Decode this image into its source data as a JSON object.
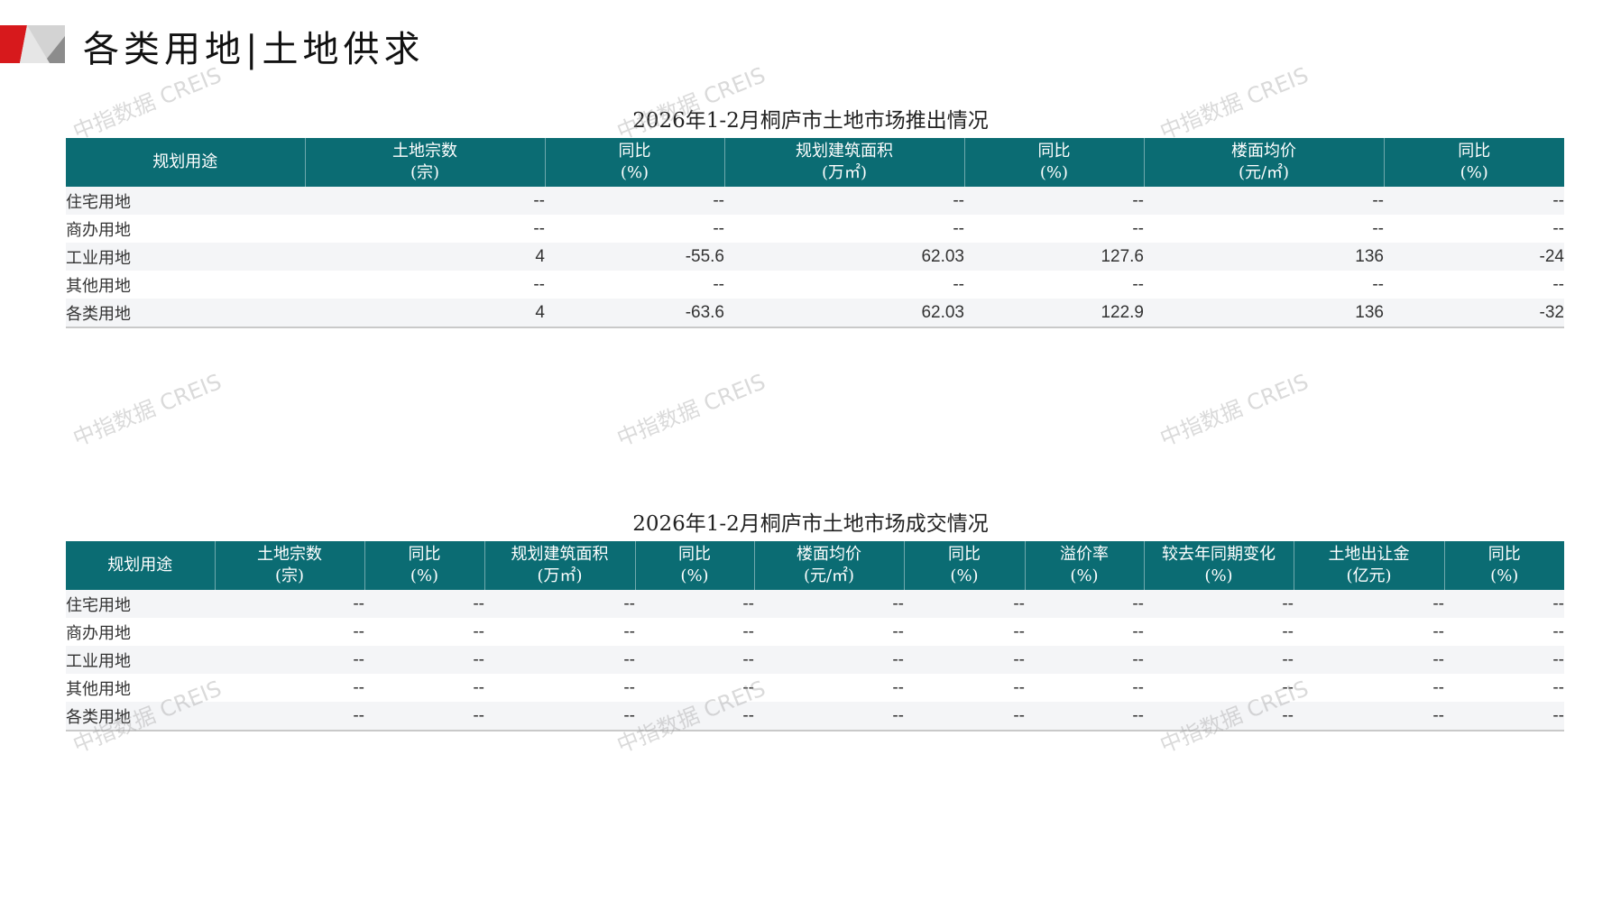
{
  "page": {
    "title": "各类用地|土地供求",
    "watermark": "中指数据 CREIS",
    "colors": {
      "header": "#0b6c73",
      "accent_red": "#d7191c"
    }
  },
  "supply": {
    "title": "2026年1-2月桐庐市土地市场推出情况",
    "headers": [
      [
        "规划用途",
        ""
      ],
      [
        "土地宗数",
        "(宗)"
      ],
      [
        "同比",
        "(%)"
      ],
      [
        "规划建筑面积",
        "(万㎡)"
      ],
      [
        "同比",
        "(%)"
      ],
      [
        "楼面均价",
        "(元/㎡)"
      ],
      [
        "同比",
        "(%)"
      ]
    ],
    "rows": [
      [
        "住宅用地",
        "--",
        "--",
        "--",
        "--",
        "--",
        "--"
      ],
      [
        "商办用地",
        "--",
        "--",
        "--",
        "--",
        "--",
        "--"
      ],
      [
        "工业用地",
        "4",
        "-55.6",
        "62.03",
        "127.6",
        "136",
        "-24"
      ],
      [
        "其他用地",
        "--",
        "--",
        "--",
        "--",
        "--",
        "--"
      ],
      [
        "各类用地",
        "4",
        "-63.6",
        "62.03",
        "122.9",
        "136",
        "-32"
      ]
    ]
  },
  "deal": {
    "title": "2026年1-2月桐庐市土地市场成交情况",
    "headers": [
      [
        "规划用途",
        ""
      ],
      [
        "土地宗数",
        "(宗)"
      ],
      [
        "同比",
        "(%)"
      ],
      [
        "规划建筑面积",
        "(万㎡)"
      ],
      [
        "同比",
        "(%)"
      ],
      [
        "楼面均价",
        "(元/㎡)"
      ],
      [
        "同比",
        "(%)"
      ],
      [
        "溢价率",
        "(%)"
      ],
      [
        "较去年同期变化",
        "(%)"
      ],
      [
        "土地出让金",
        "(亿元)"
      ],
      [
        "同比",
        "(%)"
      ]
    ],
    "rows": [
      [
        "住宅用地",
        "--",
        "--",
        "--",
        "--",
        "--",
        "--",
        "--",
        "--",
        "--",
        "--"
      ],
      [
        "商办用地",
        "--",
        "--",
        "--",
        "--",
        "--",
        "--",
        "--",
        "--",
        "--",
        "--"
      ],
      [
        "工业用地",
        "--",
        "--",
        "--",
        "--",
        "--",
        "--",
        "--",
        "--",
        "--",
        "--"
      ],
      [
        "其他用地",
        "--",
        "--",
        "--",
        "--",
        "--",
        "--",
        "--",
        "--",
        "--",
        "--"
      ],
      [
        "各类用地",
        "--",
        "--",
        "--",
        "--",
        "--",
        "--",
        "--",
        "--",
        "--",
        "--"
      ]
    ]
  }
}
